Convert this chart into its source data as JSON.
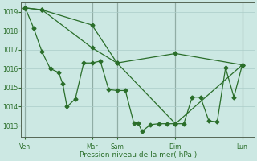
{
  "bg_color": "#cce8e3",
  "grid_color": "#aaccc8",
  "line_color": "#2a6e2a",
  "xlabel": "Pression niveau de la mer( hPa )",
  "xlabel_color": "#2a6e2a",
  "tick_color": "#2a6e2a",
  "vline_color": "#888888",
  "ylim": [
    1012.4,
    1019.5
  ],
  "yticks": [
    1013,
    1014,
    1015,
    1016,
    1017,
    1018,
    1019
  ],
  "xlim": [
    0,
    28
  ],
  "xtick_labels": [
    "Ven",
    "Mar",
    "Sam",
    "Dim",
    "Lun"
  ],
  "xtick_positions": [
    0.5,
    8.5,
    11.5,
    18.5,
    26.5
  ],
  "vline_positions": [
    0.5,
    8.5,
    11.5,
    18.5,
    26.5
  ],
  "series1_x": [
    0.5,
    1.5,
    2.5,
    3.5,
    4.5,
    5.0,
    5.5,
    6.5,
    7.5,
    8.5,
    9.5,
    10.5,
    11.5,
    12.5,
    13.5,
    14.0,
    14.5,
    15.5,
    16.5,
    17.5,
    18.5,
    19.5,
    20.5,
    21.5,
    22.5,
    23.5,
    24.5,
    25.5,
    26.5
  ],
  "series1_y": [
    1019.2,
    1018.15,
    1016.9,
    1016.0,
    1015.8,
    1015.2,
    1014.0,
    1014.4,
    1016.3,
    1016.3,
    1016.4,
    1014.9,
    1014.85,
    1014.85,
    1013.15,
    1013.15,
    1012.7,
    1013.05,
    1013.1,
    1013.1,
    1013.1,
    1013.1,
    1014.5,
    1014.5,
    1013.25,
    1013.2,
    1016.05,
    1014.5,
    1016.2
  ],
  "series2_x": [
    0.5,
    2.5,
    8.5,
    11.5,
    18.5,
    26.5
  ],
  "series2_y": [
    1019.2,
    1019.1,
    1018.3,
    1016.3,
    1016.8,
    1016.2
  ],
  "series3_x": [
    0.5,
    2.5,
    8.5,
    11.5,
    18.5,
    26.5
  ],
  "series3_y": [
    1019.2,
    1019.1,
    1017.1,
    1016.3,
    1013.1,
    1016.2
  ]
}
